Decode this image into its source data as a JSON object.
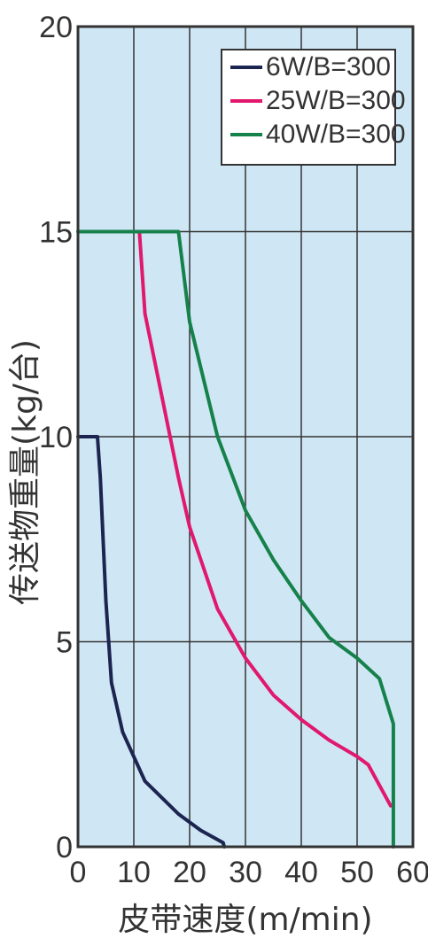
{
  "chart_data": {
    "type": "line",
    "title": "",
    "xlabel": "皮带速度(m/min)",
    "ylabel": "传送物重量(kg/台)",
    "xlim": [
      0,
      60
    ],
    "ylim": [
      0,
      20
    ],
    "x_ticks": [
      "0",
      "10",
      "20",
      "30",
      "40",
      "50",
      "60"
    ],
    "y_ticks": [
      "0",
      "5",
      "10",
      "15",
      "20"
    ],
    "grid": true,
    "legend_position": "top-right",
    "background_color": "#cfe7f5",
    "grid_color": "#333333",
    "series": [
      {
        "name": "6W/B=300",
        "color": "#1c2450",
        "points": [
          [
            0,
            10
          ],
          [
            3.5,
            10
          ],
          [
            4,
            9
          ],
          [
            5,
            6
          ],
          [
            6,
            4
          ],
          [
            8,
            2.8
          ],
          [
            12,
            1.6
          ],
          [
            18,
            0.8
          ],
          [
            22,
            0.4
          ],
          [
            26,
            0.1
          ],
          [
            26.2,
            0
          ]
        ]
      },
      {
        "name": "25W/B=300",
        "color": "#e0186e",
        "points": [
          [
            11,
            15
          ],
          [
            12,
            13
          ],
          [
            15,
            11
          ],
          [
            18,
            9
          ],
          [
            20,
            7.8
          ],
          [
            25,
            5.8
          ],
          [
            30,
            4.6
          ],
          [
            35,
            3.7
          ],
          [
            40,
            3.1
          ],
          [
            45,
            2.6
          ],
          [
            50,
            2.2
          ],
          [
            52,
            2
          ],
          [
            56,
            1
          ]
        ]
      },
      {
        "name": "40W/B=300",
        "color": "#16814a",
        "points": [
          [
            0,
            15
          ],
          [
            18,
            15
          ],
          [
            20,
            12.8
          ],
          [
            25,
            10
          ],
          [
            30,
            8.2
          ],
          [
            35,
            7
          ],
          [
            40,
            6
          ],
          [
            45,
            5.1
          ],
          [
            50,
            4.6
          ],
          [
            54,
            4.1
          ],
          [
            56.5,
            3
          ],
          [
            56.5,
            0
          ]
        ]
      }
    ]
  }
}
